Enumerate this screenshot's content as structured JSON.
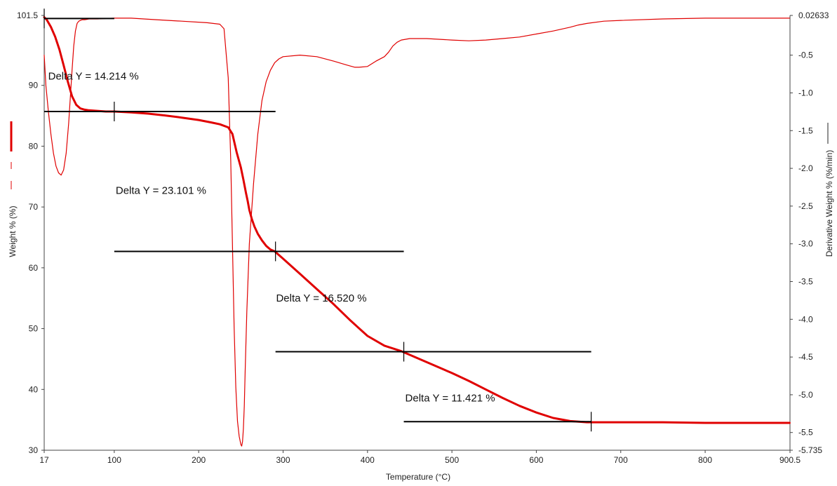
{
  "chart_data": {
    "type": "line",
    "title": "",
    "xlabel": "Temperature (°C)",
    "ylabel": "Weight % (%)",
    "y2label": "Derivative Weight % (%/min)",
    "xlim": [
      17,
      900.5
    ],
    "ylim": [
      30,
      101.5
    ],
    "y2lim": [
      -5.735,
      0.02633
    ],
    "x_ticks": [
      {
        "v": 17,
        "label": "17"
      },
      {
        "v": 100,
        "label": "100"
      },
      {
        "v": 200,
        "label": "200"
      },
      {
        "v": 300,
        "label": "300"
      },
      {
        "v": 400,
        "label": "400"
      },
      {
        "v": 500,
        "label": "500"
      },
      {
        "v": 600,
        "label": "600"
      },
      {
        "v": 700,
        "label": "700"
      },
      {
        "v": 800,
        "label": "800"
      },
      {
        "v": 900.5,
        "label": "900.5"
      }
    ],
    "y_ticks": [
      {
        "v": 30,
        "label": "30"
      },
      {
        "v": 40,
        "label": "40"
      },
      {
        "v": 50,
        "label": "50"
      },
      {
        "v": 60,
        "label": "60"
      },
      {
        "v": 70,
        "label": "70"
      },
      {
        "v": 80,
        "label": "80"
      },
      {
        "v": 90,
        "label": "90"
      },
      {
        "v": 101.5,
        "label": "101.5"
      }
    ],
    "y2_ticks": [
      {
        "v": 0.02633,
        "label": "0.02633"
      },
      {
        "v": -0.5,
        "label": "-0.5"
      },
      {
        "v": -1.0,
        "label": "-1.0"
      },
      {
        "v": -1.5,
        "label": "-1.5"
      },
      {
        "v": -2.0,
        "label": "-2.0"
      },
      {
        "v": -2.5,
        "label": "-2.5"
      },
      {
        "v": -3.0,
        "label": "-3.0"
      },
      {
        "v": -3.5,
        "label": "-3.5"
      },
      {
        "v": -4.0,
        "label": "-4.0"
      },
      {
        "v": -4.5,
        "label": "-4.5"
      },
      {
        "v": -5.0,
        "label": "-5.0"
      },
      {
        "v": -5.5,
        "label": "-5.5"
      },
      {
        "v": -5.735,
        "label": "-5.735"
      }
    ],
    "series": [
      {
        "axis": "left",
        "color": "#e00000",
        "style": "thick",
        "x": [
          17,
          20,
          25,
          30,
          35,
          40,
          45,
          50,
          55,
          60,
          65,
          70,
          80,
          90,
          100,
          120,
          140,
          160,
          180,
          200,
          215,
          225,
          235,
          240,
          242,
          245,
          248,
          250,
          253,
          256,
          258,
          260,
          263,
          266,
          270,
          275,
          280,
          285,
          290,
          300,
          320,
          340,
          360,
          380,
          400,
          420,
          440,
          460,
          480,
          500,
          520,
          540,
          560,
          580,
          600,
          620,
          640,
          660,
          680,
          700,
          750,
          800,
          850,
          900
        ],
        "y": [
          101.2,
          100.8,
          99.6,
          98.0,
          95.9,
          93.3,
          90.6,
          88.2,
          86.8,
          86.2,
          86.0,
          85.9,
          85.8,
          85.7,
          85.7,
          85.55,
          85.35,
          85.05,
          84.7,
          84.3,
          83.9,
          83.6,
          83.1,
          82.0,
          80.8,
          79.0,
          77.5,
          76.5,
          74.5,
          72.3,
          71.0,
          69.5,
          68.0,
          66.8,
          65.6,
          64.5,
          63.6,
          63.0,
          62.7,
          61.5,
          59.0,
          56.5,
          54.0,
          51.3,
          48.8,
          47.2,
          46.3,
          45.1,
          43.9,
          42.7,
          41.4,
          40.0,
          38.6,
          37.3,
          36.2,
          35.3,
          34.8,
          34.6,
          34.6,
          34.6,
          34.6,
          34.5,
          34.5,
          34.5
        ]
      },
      {
        "axis": "right",
        "color": "#e00000",
        "style": "thin",
        "x": [
          17,
          19,
          22,
          25,
          28,
          31,
          34,
          37,
          40,
          43,
          46,
          48,
          50,
          52,
          54,
          56,
          58,
          60,
          62,
          65,
          70,
          80,
          100,
          120,
          150,
          180,
          210,
          225,
          230,
          235,
          238,
          240,
          242,
          244,
          246,
          248,
          250,
          251,
          252,
          253,
          254,
          255,
          257,
          260,
          265,
          270,
          275,
          280,
          285,
          290,
          295,
          300,
          320,
          340,
          360,
          375,
          385,
          390,
          400,
          410,
          420,
          425,
          430,
          435,
          440,
          450,
          470,
          500,
          520,
          540,
          560,
          580,
          600,
          620,
          640,
          650,
          660,
          680,
          700,
          750,
          800,
          850,
          900
        ],
        "y": [
          -0.5,
          -0.9,
          -1.25,
          -1.55,
          -1.8,
          -1.97,
          -2.06,
          -2.09,
          -2.02,
          -1.8,
          -1.4,
          -1.05,
          -0.7,
          -0.38,
          -0.18,
          -0.08,
          -0.05,
          -0.04,
          -0.03,
          -0.03,
          -0.02,
          -0.02,
          -0.01,
          -0.01,
          -0.03,
          -0.05,
          -0.07,
          -0.09,
          -0.15,
          -0.8,
          -1.9,
          -3.0,
          -4.1,
          -4.9,
          -5.35,
          -5.55,
          -5.66,
          -5.68,
          -5.62,
          -5.45,
          -5.15,
          -4.7,
          -3.9,
          -3.0,
          -2.2,
          -1.55,
          -1.1,
          -0.85,
          -0.7,
          -0.6,
          -0.55,
          -0.52,
          -0.5,
          -0.52,
          -0.58,
          -0.63,
          -0.66,
          -0.66,
          -0.65,
          -0.58,
          -0.52,
          -0.46,
          -0.38,
          -0.33,
          -0.3,
          -0.28,
          -0.28,
          -0.3,
          -0.31,
          -0.3,
          -0.28,
          -0.26,
          -0.22,
          -0.18,
          -0.13,
          -0.1,
          -0.08,
          -0.05,
          -0.04,
          -0.02,
          -0.01,
          -0.01,
          -0.01
        ]
      }
    ],
    "steps": [
      {
        "x1": 17,
        "x2": 100,
        "y": 101.0,
        "cross": [
          17
        ]
      },
      {
        "x1": 17,
        "x2": 291,
        "y": 85.7,
        "cross": [
          100
        ]
      },
      {
        "x1": 100,
        "x2": 443,
        "y": 62.7,
        "cross": [
          291
        ]
      },
      {
        "x1": 291,
        "x2": 665,
        "y": 46.2,
        "cross": [
          443
        ]
      },
      {
        "x1": 443,
        "x2": 665,
        "y": 34.7,
        "cross": [
          665
        ]
      }
    ],
    "annotations": [
      {
        "text": "Delta Y = 14.214 %",
        "x": 20,
        "y": 91.5
      },
      {
        "text": "Delta Y = 23.101 %",
        "x": 100,
        "y": 72.7
      },
      {
        "text": "Delta Y = 16.520 %",
        "x": 290,
        "y": 55.0
      },
      {
        "text": "Delta Y = 11.421 %",
        "x": 443,
        "y": 38.6
      }
    ]
  }
}
